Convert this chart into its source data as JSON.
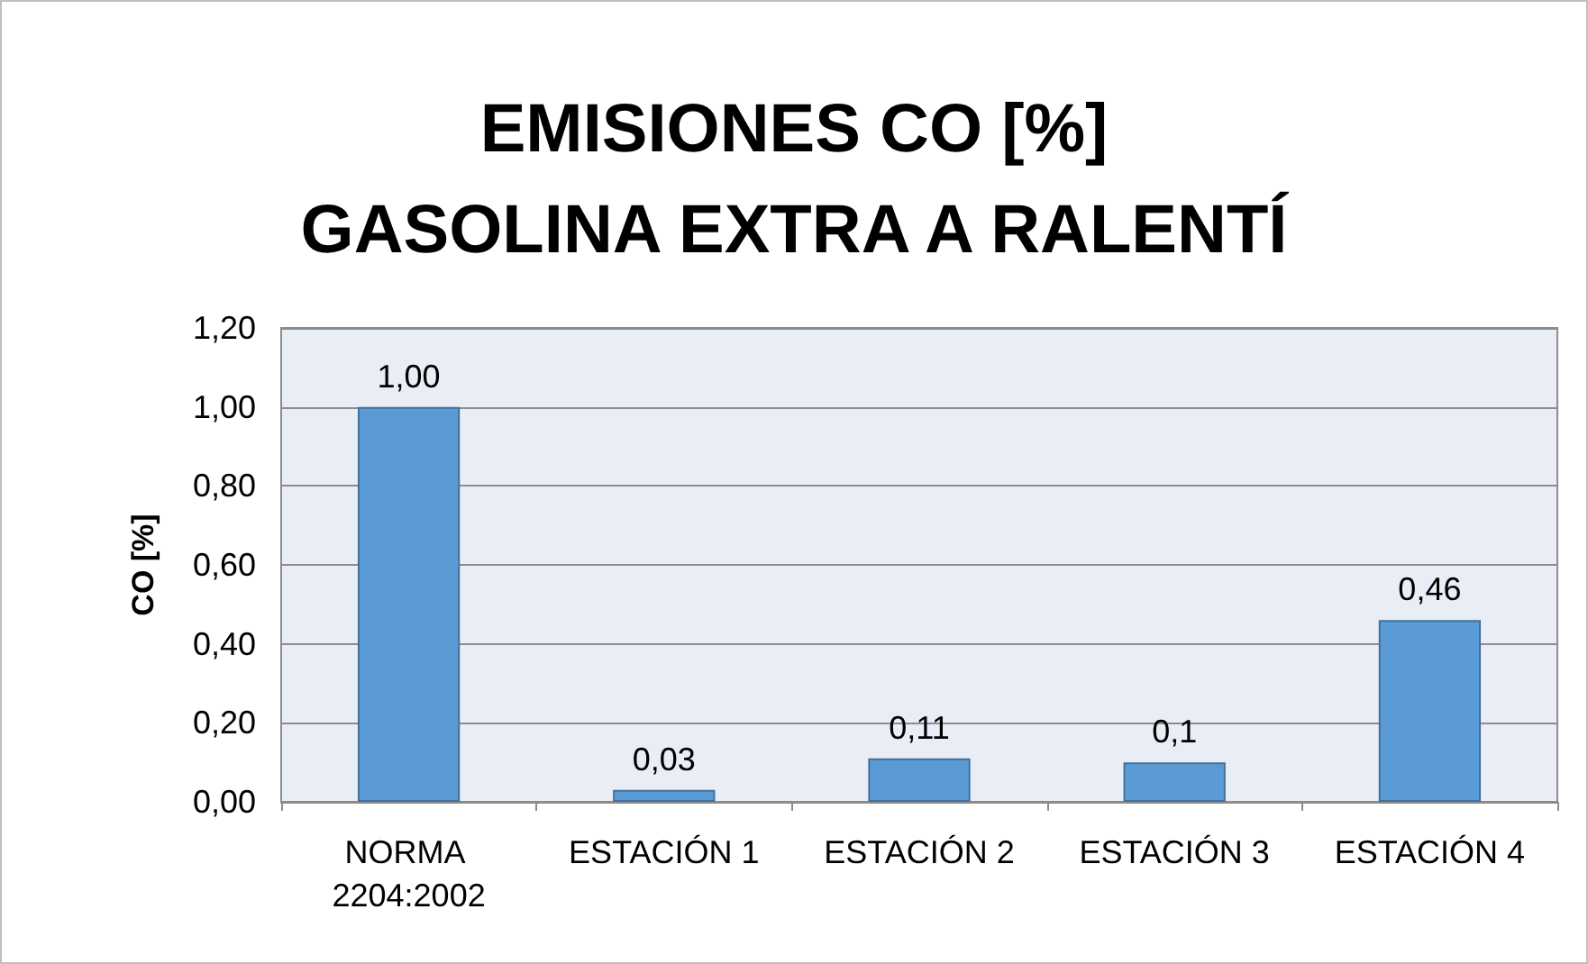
{
  "chart_data": {
    "type": "bar",
    "title": "EMISIONES CO [%]\nGASOLINA EXTRA A RALENTÍ",
    "ylabel": "CO [%]",
    "categories": [
      "NORMA 2204:2002",
      "ESTACIÓN 1",
      "ESTACIÓN 2",
      "ESTACIÓN 3",
      "ESTACIÓN 4"
    ],
    "values": [
      1.0,
      0.03,
      0.11,
      0.1,
      0.46
    ],
    "value_labels": [
      "1,00",
      "0,03",
      "0,11",
      "0,1",
      "0,46"
    ],
    "color": "#5b9bd5",
    "ylim": [
      0,
      1.2
    ],
    "yticks": [
      {
        "value": 0,
        "label": "0,00"
      },
      {
        "value": 0.2,
        "label": "0,20"
      },
      {
        "value": 0.4,
        "label": "0,40"
      },
      {
        "value": 0.6,
        "label": "0,60"
      },
      {
        "value": 0.8,
        "label": "0,80"
      },
      {
        "value": 1.0,
        "label": "1,00"
      },
      {
        "value": 1.2,
        "label": "1,20"
      }
    ],
    "grid": "y"
  }
}
